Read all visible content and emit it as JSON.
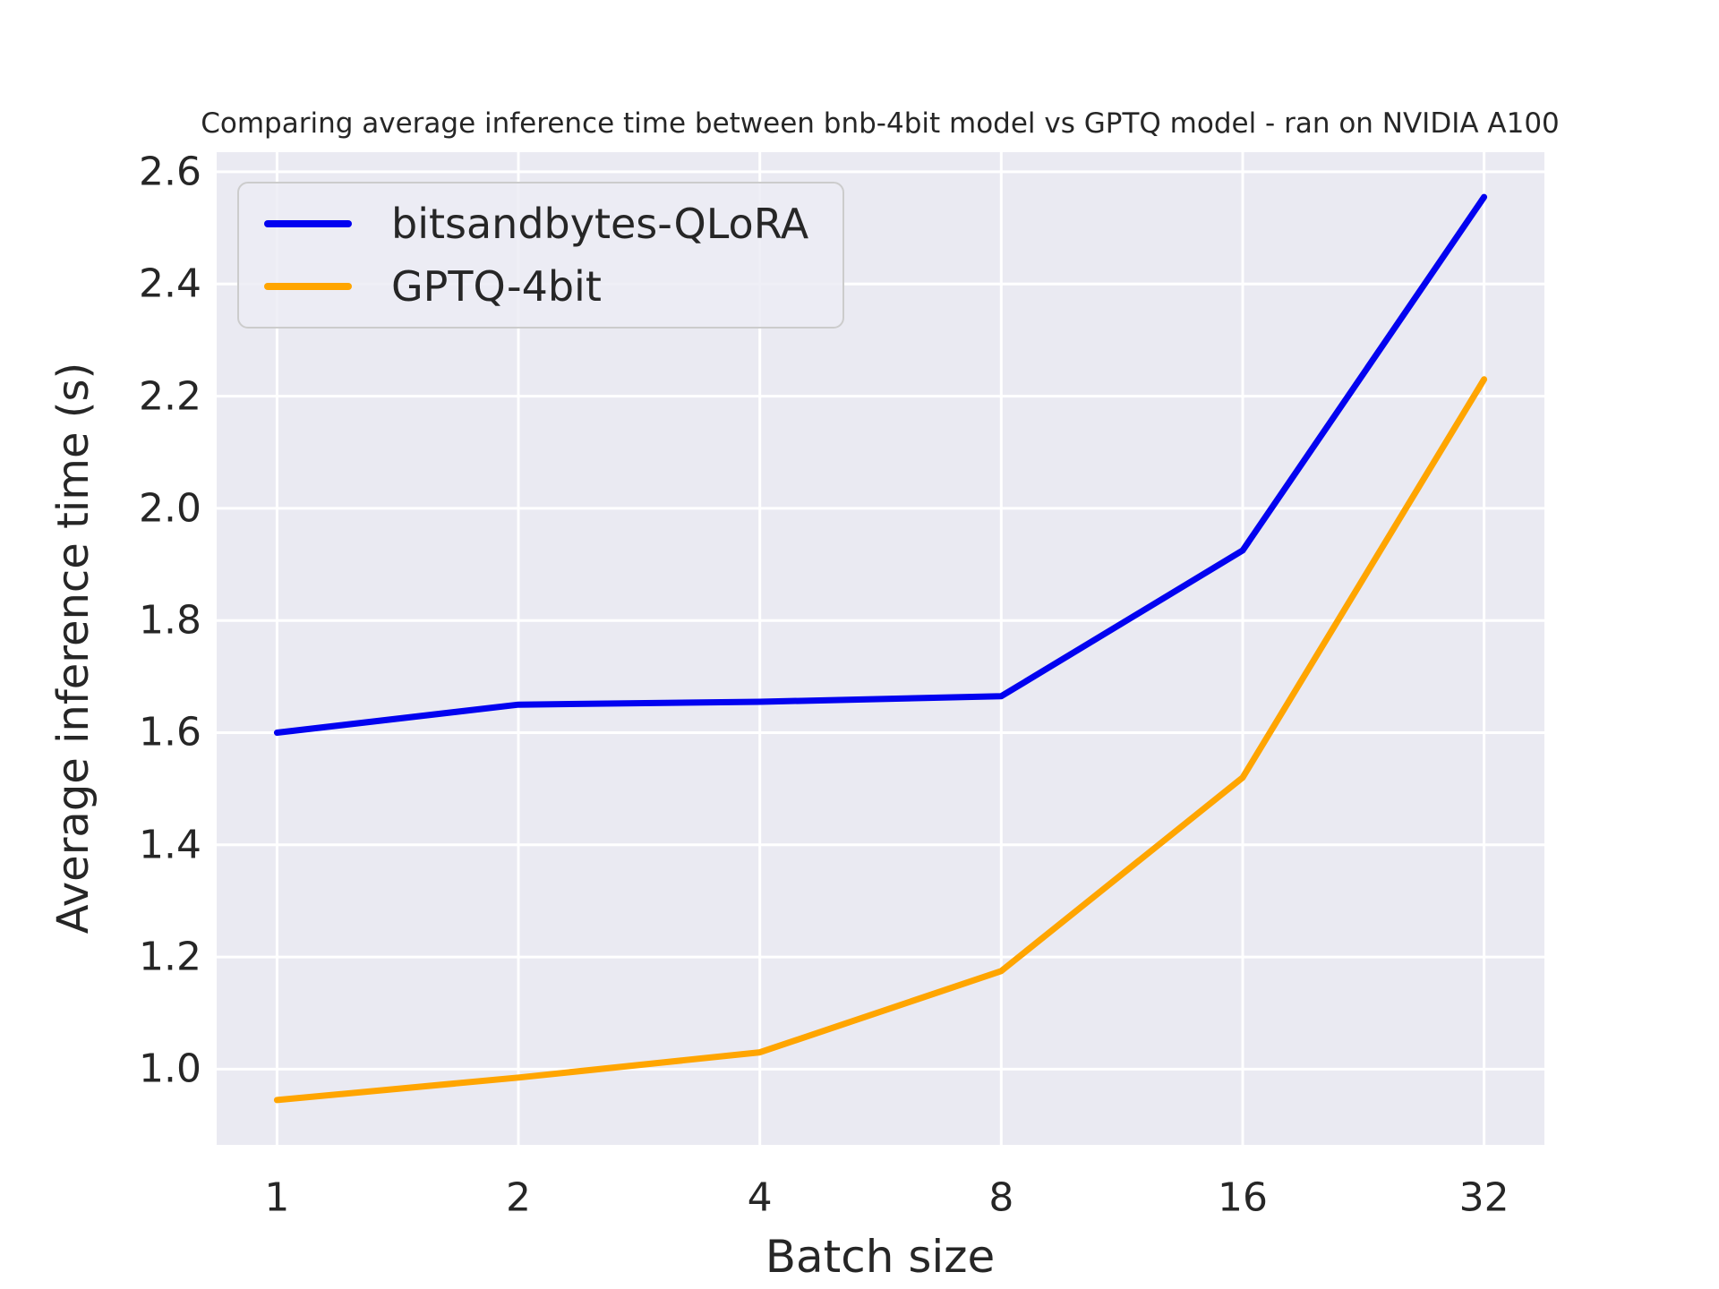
{
  "chart_data": {
    "type": "line",
    "title": "Comparing average inference time between bnb-4bit model vs GPTQ model - ran on NVIDIA A100",
    "xlabel": "Batch size",
    "ylabel": "Average inference time (s)",
    "x": [
      1,
      2,
      4,
      8,
      16,
      32
    ],
    "x_scale": "log2",
    "x_tick_labels": [
      "1",
      "2",
      "4",
      "8",
      "16",
      "32"
    ],
    "series": [
      {
        "name": "bitsandbytes-QLoRA",
        "color": "#0202f0",
        "values": [
          1.6,
          1.65,
          1.655,
          1.665,
          1.925,
          2.555
        ]
      },
      {
        "name": "GPTQ-4bit",
        "color": "#ffa500",
        "values": [
          0.945,
          0.985,
          1.03,
          1.175,
          1.52,
          2.23
        ]
      }
    ],
    "y_ticks": [
      {
        "value": 1.0,
        "label": "1.0"
      },
      {
        "value": 1.2,
        "label": "1.2"
      },
      {
        "value": 1.4,
        "label": "1.4"
      },
      {
        "value": 1.6,
        "label": "1.6"
      },
      {
        "value": 1.8,
        "label": "1.8"
      },
      {
        "value": 2.0,
        "label": "2.0"
      },
      {
        "value": 2.2,
        "label": "2.2"
      },
      {
        "value": 2.4,
        "label": "2.4"
      },
      {
        "value": 2.6,
        "label": "2.6"
      }
    ],
    "ylim": [
      0.865,
      2.635
    ],
    "xlim_log2": [
      -0.25,
      5.25
    ],
    "grid": true,
    "legend_position": "upper left",
    "plot_bg": "#eaeaf2",
    "grid_color": "#ffffff",
    "text_color": "#262626"
  }
}
